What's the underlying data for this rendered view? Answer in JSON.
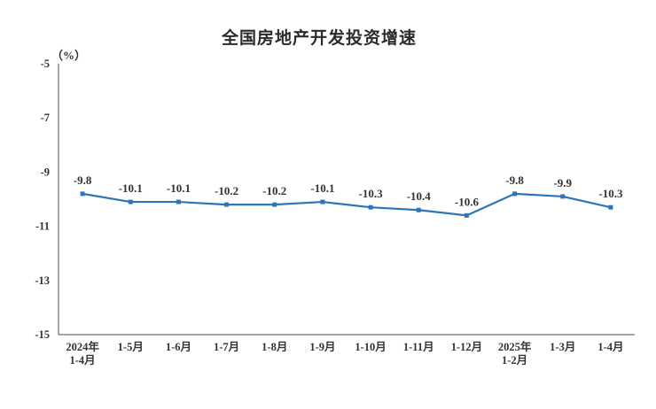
{
  "chart_data": {
    "type": "line",
    "title": "全国房地产开发投资增速",
    "unit_label": "（%）",
    "categories": [
      "2024年\n1-4月",
      "1-5月",
      "1-6月",
      "1-7月",
      "1-8月",
      "1-9月",
      "1-10月",
      "1-11月",
      "1-12月",
      "2025年\n1-2月",
      "1-3月",
      "1-4月"
    ],
    "values": [
      -9.8,
      -10.1,
      -10.1,
      -10.2,
      -10.2,
      -10.1,
      -10.3,
      -10.4,
      -10.6,
      -9.8,
      -9.9,
      -10.3
    ],
    "data_labels": [
      "-9.8",
      "-10.1",
      "-10.1",
      "-10.2",
      "-10.2",
      "-10.1",
      "-10.3",
      "-10.4",
      "-10.6",
      "-9.8",
      "-9.9",
      "-10.3"
    ],
    "ylim": [
      -15,
      -5
    ],
    "yticks": [
      -5,
      -7,
      -9,
      -11,
      -13,
      -15
    ],
    "grid": false,
    "legend": "none",
    "line_color": "#2E75B6",
    "label_color": "#333333",
    "axis_color": "#4d4d4d"
  }
}
